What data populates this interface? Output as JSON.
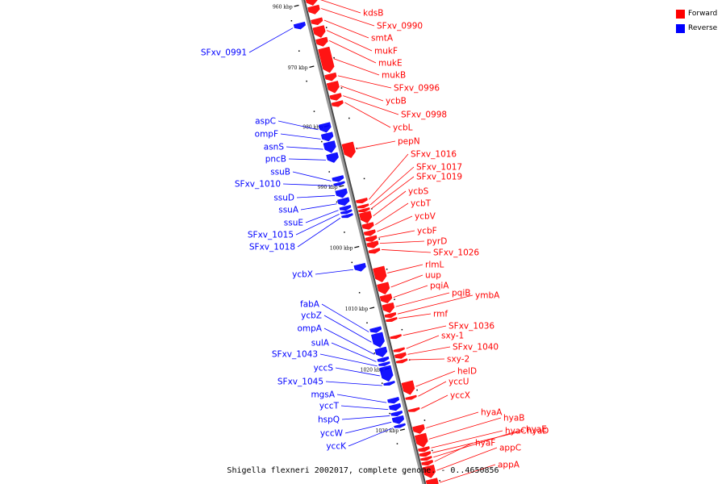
{
  "legend": {
    "items": [
      {
        "label": "Forward",
        "color": "#ff0000"
      },
      {
        "label": "Reverse",
        "color": "#0000ff"
      }
    ]
  },
  "caption": "Shigella flexneri 2002017, complete genome. - 0..4650856",
  "colors": {
    "forward": "#ff0000",
    "reverse": "#0000ff",
    "axis": "#9a9a9a",
    "shadow": "#444444"
  },
  "ticks": [
    {
      "label": "960 kbp",
      "t": 0.015
    },
    {
      "label": "970 kbp",
      "t": 0.14
    },
    {
      "label": "980 kbp",
      "t": 0.262
    },
    {
      "label": "990 kbp",
      "t": 0.385
    },
    {
      "label": "1000 kbp",
      "t": 0.51
    },
    {
      "label": "1010 kbp",
      "t": 0.635
    },
    {
      "label": "1020 kbp",
      "t": 0.76
    },
    {
      "label": "1030 kbp",
      "t": 0.885
    }
  ],
  "forward_genes": [
    {
      "name": "kdsB",
      "t": 0.004,
      "len": 0.018
    },
    {
      "name": "SFxv_0990",
      "t": 0.024,
      "len": 0.016
    },
    {
      "name": "smtA",
      "t": 0.05,
      "len": 0.012
    },
    {
      "name": "mukF",
      "t": 0.066,
      "len": 0.022
    },
    {
      "name": "mukE",
      "t": 0.09,
      "len": 0.016
    },
    {
      "name": "mukB",
      "t": 0.11,
      "len": 0.05
    },
    {
      "name": "SFxv_0996",
      "t": 0.163,
      "len": 0.014
    },
    {
      "name": "ycbB",
      "t": 0.18,
      "len": 0.022
    },
    {
      "name": "SFxv_0998",
      "t": 0.205,
      "len": 0.012
    },
    {
      "name": "ycbL",
      "t": 0.22,
      "len": 0.01
    },
    {
      "name": "pepN",
      "t": 0.305,
      "len": 0.03
    },
    {
      "name": "SFxv_1016",
      "t": 0.42,
      "len": 0.008
    },
    {
      "name": "SFxv_1017",
      "t": 0.432,
      "len": 0.006
    },
    {
      "name": "SFxv_1019",
      "t": 0.44,
      "len": 0.006
    },
    {
      "name": "ycbS",
      "t": 0.447,
      "len": 0.022
    },
    {
      "name": "ycbT",
      "t": 0.47,
      "len": 0.012
    },
    {
      "name": "ycbV",
      "t": 0.485,
      "len": 0.01
    },
    {
      "name": "ycbF",
      "t": 0.497,
      "len": 0.01
    },
    {
      "name": "pyrD",
      "t": 0.508,
      "len": 0.012
    },
    {
      "name": "SFxv_1026",
      "t": 0.523,
      "len": 0.008
    },
    {
      "name": "rlmL",
      "t": 0.56,
      "len": 0.03
    },
    {
      "name": "uup",
      "t": 0.593,
      "len": 0.022
    },
    {
      "name": "pqiA",
      "t": 0.617,
      "len": 0.016
    },
    {
      "name": "pqiB",
      "t": 0.635,
      "len": 0.018
    },
    {
      "name": "ymbA",
      "t": 0.655,
      "len": 0.008
    },
    {
      "name": "rmf",
      "t": 0.665,
      "len": 0.006
    },
    {
      "name": "SFxv_1036",
      "t": 0.7,
      "len": 0.006
    },
    {
      "name": "sxy-1",
      "t": 0.727,
      "len": 0.006
    },
    {
      "name": "SFxv_1040",
      "t": 0.737,
      "len": 0.01
    },
    {
      "name": "sxy-2",
      "t": 0.75,
      "len": 0.006
    },
    {
      "name": "helD",
      "t": 0.795,
      "len": 0.026
    },
    {
      "name": "yccU",
      "t": 0.825,
      "len": 0.006
    },
    {
      "name": "yccX",
      "t": 0.85,
      "len": 0.006
    },
    {
      "name": "hyaA",
      "t": 0.885,
      "len": 0.016
    },
    {
      "name": "hyaB",
      "t": 0.903,
      "len": 0.026
    },
    {
      "name": "hyaC",
      "t": 0.93,
      "len": 0.008
    },
    {
      "name": "hyaD",
      "t": 0.94,
      "len": 0.008
    },
    {
      "name": "hyaE",
      "t": 0.95,
      "len": 0.006
    },
    {
      "name": "hyaF",
      "t": 0.958,
      "len": 0.008
    },
    {
      "name": "appC",
      "t": 0.968,
      "len": 0.024
    },
    {
      "name": "appA",
      "t": 0.995,
      "len": 0.02
    }
  ],
  "reverse_genes": [
    {
      "name": "SFxv_0991",
      "t": 0.05,
      "len": 0.012
    },
    {
      "name": "aspC",
      "t": 0.256,
      "len": 0.018
    },
    {
      "name": "ompF",
      "t": 0.276,
      "len": 0.016
    },
    {
      "name": "asnS",
      "t": 0.294,
      "len": 0.022
    },
    {
      "name": "pncB",
      "t": 0.318,
      "len": 0.018
    },
    {
      "name": "ssuB",
      "t": 0.365,
      "len": 0.01
    },
    {
      "name": "SFxv_1010",
      "t": 0.377,
      "len": 0.006
    },
    {
      "name": "ssuD",
      "t": 0.392,
      "len": 0.016
    },
    {
      "name": "ssuA",
      "t": 0.41,
      "len": 0.014
    },
    {
      "name": "ssuE",
      "t": 0.426,
      "len": 0.008
    },
    {
      "name": "SFxv_1015",
      "t": 0.435,
      "len": 0.006
    },
    {
      "name": "SFxv_1018",
      "t": 0.443,
      "len": 0.006
    },
    {
      "name": "ycbX",
      "t": 0.545,
      "len": 0.014
    },
    {
      "name": "fabA",
      "t": 0.675,
      "len": 0.01
    },
    {
      "name": "ycbZ",
      "t": 0.687,
      "len": 0.028
    },
    {
      "name": "ompA",
      "t": 0.717,
      "len": 0.018
    },
    {
      "name": "sulA",
      "t": 0.737,
      "len": 0.008
    },
    {
      "name": "SFxv_1043",
      "t": 0.747,
      "len": 0.006
    },
    {
      "name": "yccS",
      "t": 0.755,
      "len": 0.03
    },
    {
      "name": "SFxv_1045",
      "t": 0.787,
      "len": 0.006
    },
    {
      "name": "mgsA",
      "t": 0.82,
      "len": 0.01
    },
    {
      "name": "yccT",
      "t": 0.833,
      "len": 0.012
    },
    {
      "name": "hspQ",
      "t": 0.848,
      "len": 0.008
    },
    {
      "name": "yccW",
      "t": 0.858,
      "len": 0.014
    },
    {
      "name": "yccK",
      "t": 0.874,
      "len": 0.006
    }
  ],
  "label_positions": {
    "forward": {
      "kdsB": [
        450,
        16
      ],
      "SFxv_0990": [
        467,
        32
      ],
      "smtA": [
        460,
        47
      ],
      "mukF": [
        464,
        63
      ],
      "mukE": [
        469,
        78
      ],
      "mukB": [
        473,
        93
      ],
      "SFxv_0996": [
        488,
        109
      ],
      "ycbB": [
        478,
        125
      ],
      "SFxv_0998": [
        497,
        142
      ],
      "ycbL": [
        487,
        158
      ],
      "pepN": [
        493,
        175
      ],
      "SFxv_1016": [
        509,
        191
      ],
      "SFxv_1017": [
        516,
        207
      ],
      "SFxv_1019": [
        516,
        219
      ],
      "ycbS": [
        506,
        237
      ],
      "ycbT": [
        509,
        252
      ],
      "ycbV": [
        514,
        268
      ],
      "ycbF": [
        517,
        286
      ],
      "pyrD": [
        529,
        299
      ],
      "SFxv_1026": [
        537,
        313
      ],
      "rlmL": [
        527,
        328
      ],
      "uup": [
        527,
        341
      ],
      "pqiA": [
        533,
        354
      ],
      "pqiB": [
        560,
        363
      ],
      "ymbA": [
        589,
        366
      ],
      "rmf": [
        537,
        389
      ],
      "SFxv_1036": [
        556,
        404
      ],
      "sxy-1": [
        547,
        416
      ],
      "SFxv_1040": [
        561,
        430
      ],
      "sxy-2": [
        554,
        445
      ],
      "helD": [
        567,
        460
      ],
      "yccU": [
        556,
        473
      ],
      "yccX": [
        558,
        490
      ],
      "hyaA": [
        596,
        511
      ],
      "hyaB": [
        624,
        518
      ],
      "hyaC": [
        626,
        534
      ],
      "hyaD": [
        653,
        534
      ],
      "hyaE": [
        652,
        532
      ],
      "hyaF": [
        589,
        549
      ],
      "appC": [
        619,
        555
      ],
      "appA": [
        617,
        576
      ]
    },
    "reverse": {
      "SFxv_0991": [
        306,
        65
      ],
      "aspC": [
        342,
        150
      ],
      "ompF": [
        345,
        166
      ],
      "asnS": [
        352,
        182
      ],
      "pncB": [
        355,
        197
      ],
      "ssuB": [
        360,
        213
      ],
      "SFxv_1010": [
        348,
        228
      ],
      "ssuD": [
        365,
        245
      ],
      "ssuA": [
        370,
        260
      ],
      "ssuE": [
        376,
        276
      ],
      "SFxv_1015": [
        364,
        291
      ],
      "SFxv_1018": [
        366,
        306
      ],
      "ycbX": [
        388,
        340
      ],
      "fabA": [
        396,
        377
      ],
      "ycbZ": [
        399,
        391
      ],
      "ompA": [
        399,
        407
      ],
      "sulA": [
        408,
        425
      ],
      "SFxv_1043": [
        394,
        439
      ],
      "yccS": [
        413,
        456
      ],
      "SFxv_1045": [
        401,
        473
      ],
      "mgsA": [
        415,
        489
      ],
      "yccT": [
        420,
        503
      ],
      "hspQ": [
        421,
        520
      ],
      "yccW": [
        425,
        537
      ],
      "yccK": [
        429,
        553
      ]
    }
  }
}
